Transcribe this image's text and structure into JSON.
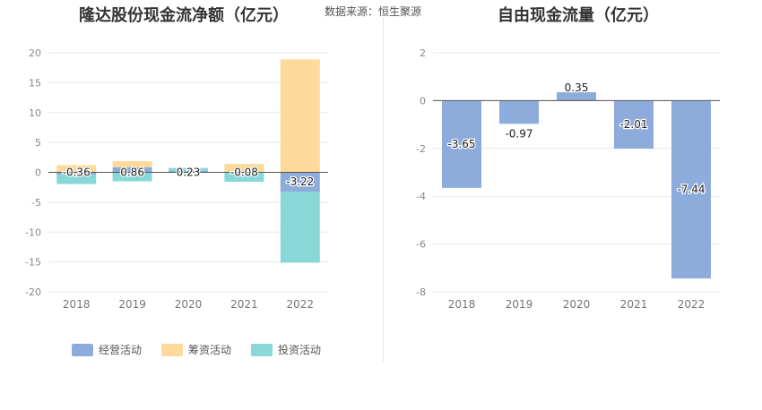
{
  "left_title": "隆达股份现金流净额（亿元）",
  "right_title": "自由现金流量（亿元）",
  "source": "数据来源：恒生聚源",
  "chart_data": [
    {
      "type": "bar",
      "stacked": true,
      "title": "隆达股份现金流净额（亿元）",
      "categories": [
        "2018",
        "2019",
        "2020",
        "2021",
        "2022"
      ],
      "ylim": [
        -20,
        20
      ],
      "yticks": [
        20,
        15,
        10,
        5,
        0,
        -5,
        -10,
        -15,
        -20
      ],
      "grid": true,
      "legend_position": "bottom",
      "series": [
        {
          "name": "经营活动",
          "color": "#8eacdb",
          "values": [
            -0.36,
            0.86,
            0.23,
            -0.08,
            -3.22
          ]
        },
        {
          "name": "筹资活动",
          "color": "#fdd99a",
          "values": [
            1.2,
            1.0,
            0.0,
            1.4,
            18.9
          ]
        },
        {
          "name": "投资活动",
          "color": "#88d8da",
          "values": [
            -1.6,
            -1.5,
            0.5,
            -1.5,
            -11.9
          ]
        }
      ],
      "data_labels": [
        "-0.36",
        "0.86",
        "0.23",
        "-0.08",
        "-3.22"
      ]
    },
    {
      "type": "bar",
      "title": "自由现金流量（亿元）",
      "categories": [
        "2018",
        "2019",
        "2020",
        "2021",
        "2022"
      ],
      "values": [
        -3.65,
        -0.97,
        0.35,
        -2.01,
        -7.44
      ],
      "data_labels": [
        "-3.65",
        "-0.97",
        "0.35",
        "-2.01",
        "-7.44"
      ],
      "color": "#8eacdb",
      "ylim": [
        -8,
        2
      ],
      "yticks": [
        2,
        0,
        -2,
        -4,
        -6,
        -8
      ],
      "grid": true
    }
  ]
}
